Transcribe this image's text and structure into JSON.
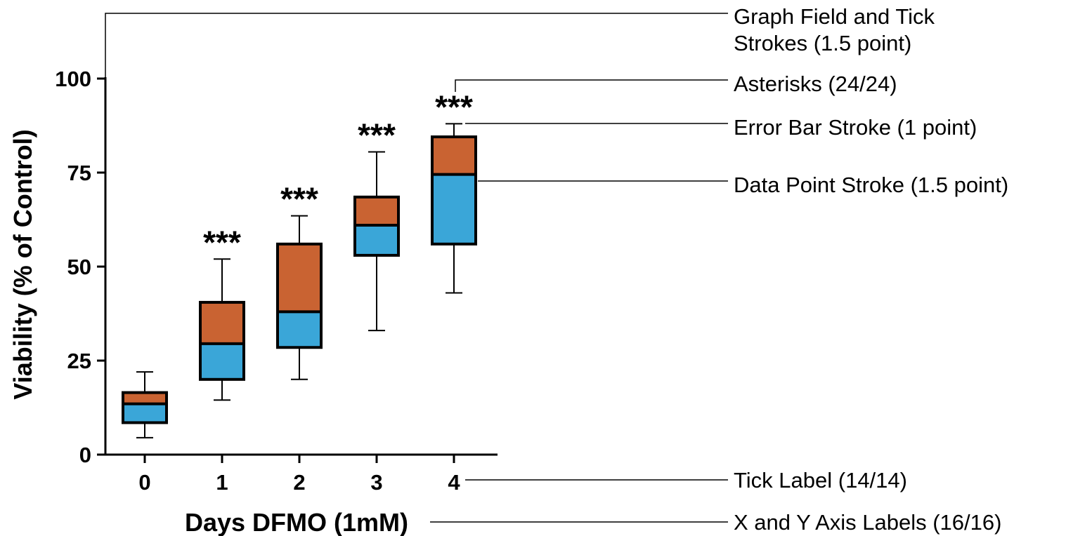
{
  "chart_data": {
    "type": "box",
    "xlabel": "Days DFMO (1mM)",
    "ylabel": "Viability (% of Control)",
    "ylim": [
      0,
      100
    ],
    "yticks": [
      "0",
      "25",
      "50",
      "75",
      "100"
    ],
    "categories": [
      "0",
      "1",
      "2",
      "3",
      "4"
    ],
    "boxes": [
      {
        "category": "0",
        "min": 4.5,
        "q1": 8.5,
        "median": 13.5,
        "q3": 16.5,
        "max": 22.0
      },
      {
        "category": "1",
        "min": 14.5,
        "q1": 20.0,
        "median": 29.5,
        "q3": 40.5,
        "max": 52.0
      },
      {
        "category": "2",
        "min": 20.0,
        "q1": 28.5,
        "median": 38.0,
        "q3": 56.0,
        "max": 63.5
      },
      {
        "category": "3",
        "min": 33.0,
        "q1": 53.0,
        "median": 61.0,
        "q3": 68.5,
        "max": 80.5
      },
      {
        "category": "4",
        "min": 43.0,
        "q1": 56.0,
        "median": 74.5,
        "q3": 84.5,
        "max": 88.0
      }
    ],
    "significance": [
      "",
      "***",
      "***",
      "***",
      "***"
    ],
    "colors": {
      "upper_box": "#C96332",
      "lower_box": "#3AA6D8",
      "stroke": "#000000"
    },
    "grid": false
  },
  "annotations": [
    {
      "line1": "Graph Field and Tick",
      "line2": "Strokes (1.5 point)"
    },
    {
      "line1": "Asterisks (24/24)",
      "line2": ""
    },
    {
      "line1": "Error Bar Stroke (1 point)",
      "line2": ""
    },
    {
      "line1": "Data Point Stroke (1.5 point)",
      "line2": ""
    },
    {
      "line1": "Tick Label (14/14)",
      "line2": ""
    },
    {
      "line1": "X and Y Axis Labels (16/16)",
      "line2": ""
    }
  ]
}
